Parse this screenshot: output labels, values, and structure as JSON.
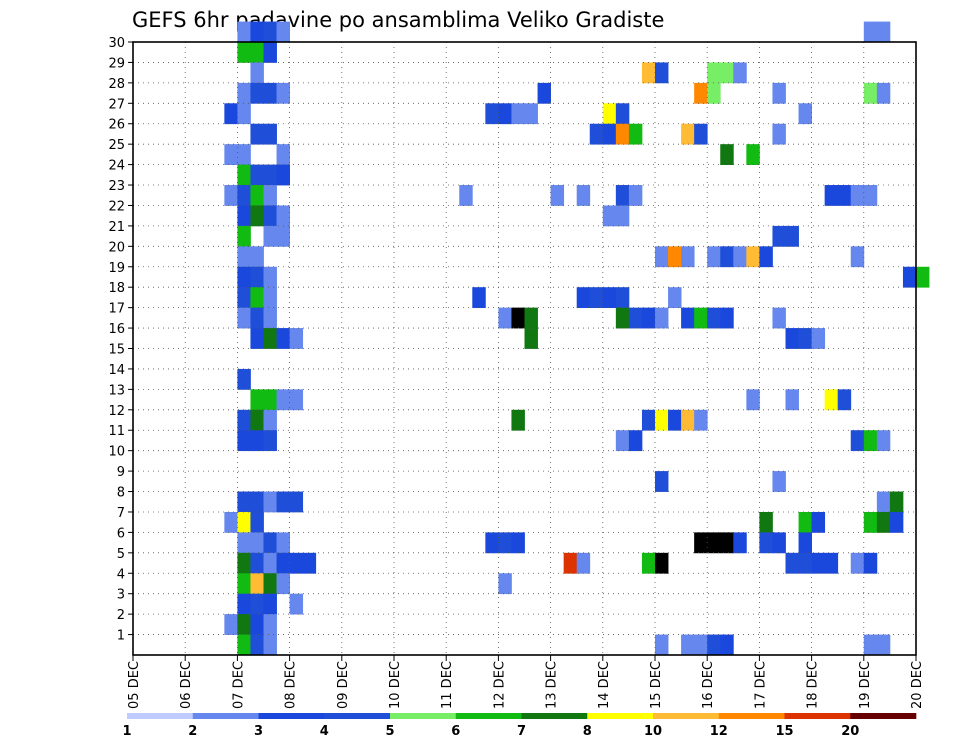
{
  "chart_data": {
    "type": "heatmap",
    "title": "GEFS 6hr padavine po ansamblima Veliko Gradiste",
    "xlabel": "",
    "ylabel": "",
    "x_tick_labels": [
      "05 DEC",
      "06 DEC",
      "07 DEC",
      "08 DEC",
      "09 DEC",
      "10 DEC",
      "11 DEC",
      "12 DEC",
      "13 DEC",
      "14 DEC",
      "15 DEC",
      "16 DEC",
      "17 DEC",
      "18 DEC",
      "19 DEC",
      "20 DEC"
    ],
    "y_tick_labels": [
      "1",
      "2",
      "3",
      "4",
      "5",
      "6",
      "7",
      "8",
      "9",
      "10",
      "11",
      "12",
      "13",
      "14",
      "15",
      "16",
      "17",
      "18",
      "19",
      "20",
      "21",
      "22",
      "23",
      "24",
      "25",
      "26",
      "27",
      "28",
      "29",
      "30"
    ],
    "x_unit": "6-hour step (4 per day) starting 05 DEC 00",
    "ylim": [
      0,
      30
    ],
    "grid": true,
    "colorbar": {
      "position": "bottom",
      "labels": [
        "1",
        "2",
        "3",
        "4",
        "5",
        "6",
        "7",
        "8",
        "10",
        "12",
        "15",
        "20"
      ],
      "colors": [
        "#c0ccff",
        "#6688ee",
        "#1a48dd",
        "#1f4ed8",
        "#77ee66",
        "#11bb11",
        "#117711",
        "#ffff00",
        "#ffbb33",
        "#ff8800",
        "#dd3300",
        "#660000"
      ]
    },
    "cells": [
      [
        8,
        30,
        1
      ],
      [
        9,
        30,
        2
      ],
      [
        10,
        30,
        3
      ],
      [
        11,
        30,
        1
      ],
      [
        56,
        30,
        1
      ],
      [
        57,
        30,
        1
      ],
      [
        8,
        29,
        5
      ],
      [
        9,
        29,
        5
      ],
      [
        10,
        29,
        2
      ],
      [
        9,
        28,
        1
      ],
      [
        39,
        28,
        8
      ],
      [
        40,
        28,
        3
      ],
      [
        44,
        28,
        4
      ],
      [
        45,
        28,
        4
      ],
      [
        46,
        28,
        1
      ],
      [
        8,
        27,
        1
      ],
      [
        9,
        27,
        3
      ],
      [
        10,
        27,
        3
      ],
      [
        11,
        27,
        1
      ],
      [
        31,
        27,
        2
      ],
      [
        43,
        27,
        9
      ],
      [
        44,
        27,
        4
      ],
      [
        49,
        27,
        1
      ],
      [
        56,
        27,
        4
      ],
      [
        57,
        27,
        1
      ],
      [
        7,
        26,
        2
      ],
      [
        8,
        26,
        1
      ],
      [
        27,
        26,
        3
      ],
      [
        28,
        26,
        2
      ],
      [
        29,
        26,
        1
      ],
      [
        30,
        26,
        1
      ],
      [
        36,
        26,
        7
      ],
      [
        37,
        26,
        3
      ],
      [
        51,
        26,
        1
      ],
      [
        9,
        25,
        3
      ],
      [
        10,
        25,
        3
      ],
      [
        35,
        25,
        3
      ],
      [
        36,
        25,
        2
      ],
      [
        37,
        25,
        9
      ],
      [
        38,
        25,
        5
      ],
      [
        42,
        25,
        8
      ],
      [
        43,
        25,
        3
      ],
      [
        49,
        25,
        1
      ],
      [
        7,
        24,
        1
      ],
      [
        8,
        24,
        1
      ],
      [
        11,
        24,
        1
      ],
      [
        45,
        24,
        6
      ],
      [
        47,
        24,
        5
      ],
      [
        8,
        23,
        5
      ],
      [
        9,
        23,
        3
      ],
      [
        10,
        23,
        3
      ],
      [
        11,
        23,
        2
      ],
      [
        7,
        22,
        1
      ],
      [
        8,
        22,
        3
      ],
      [
        9,
        22,
        5
      ],
      [
        10,
        22,
        1
      ],
      [
        25,
        22,
        1
      ],
      [
        32,
        22,
        1
      ],
      [
        34,
        22,
        1
      ],
      [
        37,
        22,
        3
      ],
      [
        38,
        22,
        1
      ],
      [
        53,
        22,
        2
      ],
      [
        54,
        22,
        2
      ],
      [
        55,
        22,
        1
      ],
      [
        56,
        22,
        1
      ],
      [
        8,
        21,
        2
      ],
      [
        9,
        21,
        6
      ],
      [
        10,
        21,
        3
      ],
      [
        11,
        21,
        1
      ],
      [
        36,
        21,
        1
      ],
      [
        37,
        21,
        1
      ],
      [
        8,
        20,
        5
      ],
      [
        10,
        20,
        1
      ],
      [
        11,
        20,
        1
      ],
      [
        49,
        20,
        3
      ],
      [
        50,
        20,
        3
      ],
      [
        8,
        19,
        1
      ],
      [
        9,
        19,
        1
      ],
      [
        40,
        19,
        1
      ],
      [
        41,
        19,
        9
      ],
      [
        42,
        19,
        1
      ],
      [
        44,
        19,
        1
      ],
      [
        45,
        19,
        3
      ],
      [
        46,
        19,
        1
      ],
      [
        47,
        19,
        8
      ],
      [
        48,
        19,
        2
      ],
      [
        55,
        19,
        1
      ],
      [
        8,
        18,
        2
      ],
      [
        9,
        18,
        3
      ],
      [
        10,
        18,
        1
      ],
      [
        59,
        18,
        2
      ],
      [
        60,
        18,
        5
      ],
      [
        8,
        17,
        3
      ],
      [
        9,
        17,
        5
      ],
      [
        10,
        17,
        1
      ],
      [
        26,
        17,
        2
      ],
      [
        34,
        17,
        2
      ],
      [
        35,
        17,
        3
      ],
      [
        36,
        17,
        2
      ],
      [
        37,
        17,
        3
      ],
      [
        41,
        17,
        1
      ],
      [
        8,
        16,
        1
      ],
      [
        9,
        16,
        3
      ],
      [
        10,
        16,
        1
      ],
      [
        28,
        16,
        1
      ],
      [
        29,
        16,
        12
      ],
      [
        30,
        16,
        6
      ],
      [
        37,
        16,
        6
      ],
      [
        38,
        16,
        3
      ],
      [
        39,
        16,
        2
      ],
      [
        40,
        16,
        1
      ],
      [
        42,
        16,
        2
      ],
      [
        43,
        16,
        5
      ],
      [
        44,
        16,
        3
      ],
      [
        45,
        16,
        2
      ],
      [
        49,
        16,
        1
      ],
      [
        9,
        15,
        2
      ],
      [
        10,
        15,
        6
      ],
      [
        11,
        15,
        2
      ],
      [
        12,
        15,
        1
      ],
      [
        30,
        15,
        6
      ],
      [
        50,
        15,
        2
      ],
      [
        51,
        15,
        3
      ],
      [
        52,
        15,
        1
      ],
      [
        8,
        13,
        3
      ],
      [
        9,
        12,
        5
      ],
      [
        10,
        12,
        5
      ],
      [
        11,
        12,
        1
      ],
      [
        12,
        12,
        1
      ],
      [
        47,
        12,
        1
      ],
      [
        50,
        12,
        1
      ],
      [
        53,
        12,
        7
      ],
      [
        54,
        12,
        3
      ],
      [
        8,
        11,
        3
      ],
      [
        9,
        11,
        6
      ],
      [
        10,
        11,
        1
      ],
      [
        29,
        11,
        6
      ],
      [
        39,
        11,
        3
      ],
      [
        40,
        11,
        7
      ],
      [
        41,
        11,
        2
      ],
      [
        42,
        11,
        8
      ],
      [
        43,
        11,
        1
      ],
      [
        8,
        10,
        2
      ],
      [
        9,
        10,
        2
      ],
      [
        10,
        10,
        3
      ],
      [
        37,
        10,
        1
      ],
      [
        38,
        10,
        2
      ],
      [
        55,
        10,
        3
      ],
      [
        56,
        10,
        5
      ],
      [
        57,
        10,
        1
      ],
      [
        40,
        8,
        3
      ],
      [
        49,
        8,
        1
      ],
      [
        8,
        7,
        3
      ],
      [
        9,
        7,
        3
      ],
      [
        10,
        7,
        1
      ],
      [
        11,
        7,
        3
      ],
      [
        12,
        7,
        3
      ],
      [
        57,
        7,
        1
      ],
      [
        58,
        7,
        6
      ],
      [
        7,
        6,
        1
      ],
      [
        8,
        6,
        7
      ],
      [
        9,
        6,
        3
      ],
      [
        48,
        6,
        6
      ],
      [
        51,
        6,
        5
      ],
      [
        52,
        6,
        2
      ],
      [
        56,
        6,
        5
      ],
      [
        57,
        6,
        6
      ],
      [
        58,
        6,
        2
      ],
      [
        8,
        5,
        1
      ],
      [
        9,
        5,
        1
      ],
      [
        10,
        5,
        3
      ],
      [
        11,
        5,
        1
      ],
      [
        27,
        5,
        2
      ],
      [
        28,
        5,
        3
      ],
      [
        29,
        5,
        2
      ],
      [
        43,
        5,
        14
      ],
      [
        44,
        5,
        13
      ],
      [
        45,
        5,
        13
      ],
      [
        46,
        5,
        2
      ],
      [
        48,
        5,
        3
      ],
      [
        49,
        5,
        2
      ],
      [
        51,
        5,
        2
      ],
      [
        8,
        4,
        6
      ],
      [
        9,
        4,
        3
      ],
      [
        10,
        4,
        1
      ],
      [
        11,
        4,
        2
      ],
      [
        12,
        4,
        2
      ],
      [
        13,
        4,
        2
      ],
      [
        33,
        4,
        10
      ],
      [
        34,
        4,
        1
      ],
      [
        39,
        4,
        5
      ],
      [
        40,
        4,
        14
      ],
      [
        50,
        4,
        3
      ],
      [
        51,
        4,
        3
      ],
      [
        52,
        4,
        2
      ],
      [
        53,
        4,
        2
      ],
      [
        55,
        4,
        1
      ],
      [
        56,
        4,
        2
      ],
      [
        8,
        3,
        5
      ],
      [
        9,
        3,
        8
      ],
      [
        10,
        3,
        6
      ],
      [
        11,
        3,
        1
      ],
      [
        28,
        3,
        1
      ],
      [
        8,
        2,
        2
      ],
      [
        9,
        2,
        3
      ],
      [
        10,
        2,
        2
      ],
      [
        12,
        2,
        1
      ],
      [
        7,
        1,
        1
      ],
      [
        8,
        1,
        6
      ],
      [
        9,
        1,
        2
      ],
      [
        10,
        1,
        1
      ],
      [
        8,
        0,
        5
      ],
      [
        9,
        0,
        3
      ],
      [
        10,
        0,
        1
      ],
      [
        40,
        0,
        1
      ],
      [
        42,
        0,
        1
      ],
      [
        43,
        0,
        1
      ],
      [
        44,
        0,
        3
      ],
      [
        45,
        0,
        2
      ],
      [
        56,
        0,
        1
      ],
      [
        57,
        0,
        1
      ]
    ]
  }
}
